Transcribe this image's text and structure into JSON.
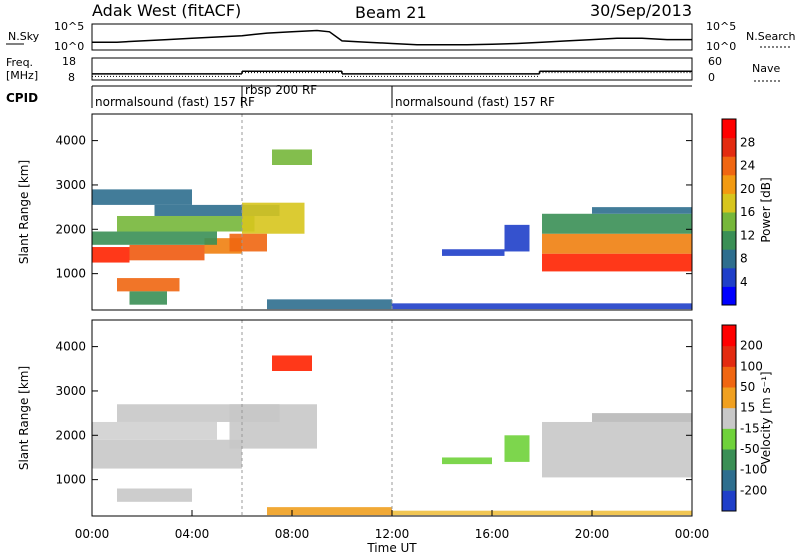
{
  "header": {
    "station": "Adak West (fitACF)",
    "beam": "Beam 21",
    "date": "30/Sep/2013"
  },
  "chart_data": [
    {
      "type": "line",
      "name": "noise-panel",
      "left_label": "N.Sky",
      "right_label": "N.Search",
      "left_ticks": [
        "10^5",
        "10^0"
      ],
      "right_ticks": [
        "10^5",
        "10^0"
      ],
      "series": [
        {
          "name": "N.Sky",
          "x": [
            0,
            1,
            2,
            3,
            4,
            5,
            6,
            6.5,
            7,
            8,
            9,
            9.5,
            10,
            11,
            12,
            13,
            14,
            15,
            16,
            17,
            18,
            19,
            20,
            21,
            22,
            23,
            24
          ],
          "values": [
            0.3,
            0.3,
            0.35,
            0.4,
            0.45,
            0.5,
            0.55,
            0.6,
            0.65,
            0.7,
            0.75,
            0.7,
            0.35,
            0.3,
            0.25,
            0.2,
            0.2,
            0.2,
            0.22,
            0.25,
            0.3,
            0.35,
            0.4,
            0.45,
            0.45,
            0.4,
            0.4
          ]
        }
      ]
    },
    {
      "type": "line",
      "name": "frequency-panel",
      "left_label_top": "Freq.",
      "left_label_bottom": "[MHz]",
      "right_label": "Nave",
      "left_ticks": [
        "18",
        "8"
      ],
      "right_ticks": [
        "60",
        "0"
      ],
      "freq_segments": [
        {
          "start": 0,
          "end": 6,
          "value": 10.8
        },
        {
          "start": 6,
          "end": 10,
          "value": 12.0
        },
        {
          "start": 10,
          "end": 17.9,
          "value": 10.8
        },
        {
          "start": 17.9,
          "end": 24,
          "value": 12.0
        }
      ],
      "nave_segments": [
        {
          "start": 0,
          "end": 6,
          "value": 10
        },
        {
          "start": 6,
          "end": 10,
          "value": 20
        },
        {
          "start": 10,
          "end": 17.9,
          "value": 10
        },
        {
          "start": 17.9,
          "end": 24,
          "value": 20
        }
      ]
    },
    {
      "type": "table",
      "name": "cpid-panel",
      "label": "CPID",
      "segments": [
        {
          "start": 0,
          "end": 6,
          "text": "normalsound (fast) 157 RF"
        },
        {
          "start": 6,
          "end": 12,
          "text": "rbsp 200 RF"
        },
        {
          "start": 12,
          "end": 24,
          "text": "normalsound (fast) 157 RF"
        }
      ]
    },
    {
      "type": "heatmap",
      "name": "power",
      "ylabel": "Slant Range [km]",
      "y_ticks": [
        "1000",
        "2000",
        "3000",
        "4000"
      ],
      "y_values": [
        1000,
        2000,
        3000,
        4000
      ],
      "ylim": [
        180,
        4600
      ],
      "xlim": [
        0,
        24
      ],
      "colorbar_label": "Power [dB]",
      "colorbar_ticks": [
        "4",
        "8",
        "12",
        "16",
        "20",
        "24",
        "28"
      ],
      "colorbar_colors": [
        "#0000ff",
        "#1f3fc9",
        "#2e6e8e",
        "#3a8f55",
        "#76b73a",
        "#d7c51d",
        "#f29a11",
        "#f06611",
        "#e32b10",
        "#ff0000"
      ],
      "bands": [
        {
          "t0": 0.0,
          "t1": 1.5,
          "r0": 1250,
          "r1": 1600,
          "color": "#ff2200"
        },
        {
          "t0": 1.5,
          "t1": 4.5,
          "r0": 1300,
          "r1": 1650,
          "color": "#f05a10"
        },
        {
          "t0": 4.5,
          "t1": 6.0,
          "r0": 1450,
          "r1": 1800,
          "color": "#f08010"
        },
        {
          "t0": 0.0,
          "t1": 5.0,
          "r0": 1650,
          "r1": 1950,
          "color": "#3a8f55"
        },
        {
          "t0": 1.0,
          "t1": 6.5,
          "r0": 1950,
          "r1": 2300,
          "color": "#76b73a"
        },
        {
          "t0": 2.5,
          "t1": 7.5,
          "r0": 2300,
          "r1": 2550,
          "color": "#2e6e8e"
        },
        {
          "t0": 0.0,
          "t1": 4.0,
          "r0": 2550,
          "r1": 2900,
          "color": "#2e6e8e"
        },
        {
          "t0": 6.0,
          "t1": 8.5,
          "r0": 1900,
          "r1": 2600,
          "color": "#d7c51d"
        },
        {
          "t0": 5.5,
          "t1": 7.0,
          "r0": 1500,
          "r1": 1900,
          "color": "#f06611"
        },
        {
          "t0": 7.2,
          "t1": 8.8,
          "r0": 3450,
          "r1": 3800,
          "color": "#76b73a"
        },
        {
          "t0": 1.0,
          "t1": 3.5,
          "r0": 600,
          "r1": 900,
          "color": "#f06611"
        },
        {
          "t0": 1.5,
          "t1": 3.0,
          "r0": 300,
          "r1": 600,
          "color": "#3a8f55"
        },
        {
          "t0": 7.0,
          "t1": 12.0,
          "r0": 200,
          "r1": 420,
          "color": "#2e6e8e"
        },
        {
          "t0": 12.0,
          "t1": 24.0,
          "r0": 200,
          "r1": 330,
          "color": "#1f3fc9"
        },
        {
          "t0": 14.0,
          "t1": 16.5,
          "r0": 1400,
          "r1": 1550,
          "color": "#1f3fc9"
        },
        {
          "t0": 16.5,
          "t1": 17.5,
          "r0": 1500,
          "r1": 2100,
          "color": "#1f3fc9"
        },
        {
          "t0": 18.0,
          "t1": 24.0,
          "r0": 1050,
          "r1": 1450,
          "color": "#ff2200"
        },
        {
          "t0": 18.0,
          "t1": 24.0,
          "r0": 1450,
          "r1": 1900,
          "color": "#f08010"
        },
        {
          "t0": 18.0,
          "t1": 24.0,
          "r0": 1900,
          "r1": 2350,
          "color": "#3a8f55"
        },
        {
          "t0": 20.0,
          "t1": 24.0,
          "r0": 2350,
          "r1": 2500,
          "color": "#2e6e8e"
        }
      ]
    },
    {
      "type": "heatmap",
      "name": "velocity",
      "ylabel": "Slant Range [km]",
      "y_ticks": [
        "1000",
        "2000",
        "3000",
        "4000"
      ],
      "y_values": [
        1000,
        2000,
        3000,
        4000
      ],
      "ylim": [
        180,
        4600
      ],
      "xlim": [
        0,
        24
      ],
      "x_ticks": [
        "00:00",
        "04:00",
        "08:00",
        "12:00",
        "16:00",
        "20:00",
        "00:00"
      ],
      "xlabel": "Time UT",
      "colorbar_label": "Velocity [m s⁻¹]",
      "colorbar_ticks": [
        "200",
        "100",
        "50",
        "15",
        "-15",
        "-50",
        "-100",
        "-200"
      ],
      "colorbar_colors": [
        "#1f3fc9",
        "#2e6e8e",
        "#3a8f55",
        "#6fd23a",
        "#c8c8c8",
        "#f0a020",
        "#f06611",
        "#e32b10",
        "#ff0000"
      ],
      "bands": [
        {
          "t0": 0.0,
          "t1": 6.0,
          "r0": 1250,
          "r1": 1900,
          "color": "#c8c8c8"
        },
        {
          "t0": 0.0,
          "t1": 5.0,
          "r0": 1900,
          "r1": 2300,
          "color": "#d0d0d0"
        },
        {
          "t0": 1.0,
          "t1": 7.5,
          "r0": 2300,
          "r1": 2700,
          "color": "#c8c8c8"
        },
        {
          "t0": 5.5,
          "t1": 9.0,
          "r0": 1700,
          "r1": 2700,
          "color": "#c8c8c8"
        },
        {
          "t0": 1.0,
          "t1": 4.0,
          "r0": 500,
          "r1": 800,
          "color": "#c8c8c8"
        },
        {
          "t0": 7.2,
          "t1": 8.8,
          "r0": 3450,
          "r1": 3800,
          "color": "#ff2200"
        },
        {
          "t0": 7.0,
          "t1": 12.0,
          "r0": 200,
          "r1": 380,
          "color": "#f0a020"
        },
        {
          "t0": 12.0,
          "t1": 24.0,
          "r0": 200,
          "r1": 300,
          "color": "#f0c040"
        },
        {
          "t0": 14.0,
          "t1": 16.0,
          "r0": 1350,
          "r1": 1500,
          "color": "#6fd23a"
        },
        {
          "t0": 16.5,
          "t1": 17.5,
          "r0": 1400,
          "r1": 2000,
          "color": "#6fd23a"
        },
        {
          "t0": 18.0,
          "t1": 24.0,
          "r0": 1050,
          "r1": 2300,
          "color": "#c8c8c8"
        },
        {
          "t0": 20.0,
          "t1": 24.0,
          "r0": 2300,
          "r1": 2500,
          "color": "#b8b8b8"
        }
      ]
    }
  ]
}
